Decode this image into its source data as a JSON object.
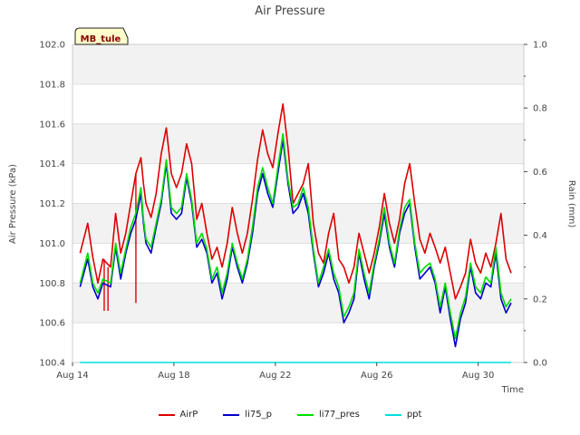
{
  "chart_data": {
    "type": "line",
    "title": "Air Pressure",
    "xlabel": "Time",
    "ylabel": "Air Pressure (kPa)",
    "y2label": "Rain (mm)",
    "annotation": "MB_tule",
    "x_ticks": [
      "Aug 14",
      "Aug 18",
      "Aug 22",
      "Aug 26",
      "Aug 30"
    ],
    "y_ticks": [
      "100.4",
      "100.6",
      "100.8",
      "101.0",
      "101.2",
      "101.4",
      "101.6",
      "101.8",
      "102.0"
    ],
    "y2_ticks": [
      "0.0",
      "0.2",
      "0.4",
      "0.6",
      "0.8",
      "1.0"
    ],
    "ylim": [
      100.4,
      102.0
    ],
    "y2lim": [
      0.0,
      1.0
    ],
    "xlim_days": [
      14,
      31.8
    ],
    "grid": true,
    "legend_position": "bottom",
    "series": [
      {
        "name": "AirP",
        "color": "#dd0000",
        "axis": "left",
        "x": [
          14.3,
          14.6,
          14.8,
          15.0,
          15.2,
          15.5,
          15.7,
          15.9,
          16.1,
          16.3,
          16.5,
          16.7,
          16.8,
          16.9,
          17.1,
          17.3,
          17.5,
          17.7,
          17.9,
          18.1,
          18.3,
          18.5,
          18.7,
          18.9,
          19.1,
          19.3,
          19.5,
          19.7,
          19.9,
          20.1,
          20.3,
          20.5,
          20.7,
          20.9,
          21.1,
          21.3,
          21.5,
          21.7,
          21.9,
          22.1,
          22.3,
          22.5,
          22.7,
          22.9,
          23.1,
          23.3,
          23.5,
          23.7,
          23.9,
          24.1,
          24.3,
          24.5,
          24.7,
          24.9,
          25.1,
          25.3,
          25.5,
          25.7,
          25.9,
          26.1,
          26.3,
          26.5,
          26.7,
          26.9,
          27.1,
          27.3,
          27.5,
          27.7,
          27.9,
          28.1,
          28.3,
          28.5,
          28.7,
          28.9,
          29.1,
          29.3,
          29.5,
          29.7,
          29.9,
          30.1,
          30.3,
          30.5,
          30.7,
          30.9,
          31.1,
          31.3
        ],
        "y": [
          100.95,
          101.1,
          100.93,
          100.8,
          100.92,
          100.88,
          101.15,
          100.95,
          101.05,
          101.2,
          101.35,
          101.43,
          101.3,
          101.2,
          101.13,
          101.25,
          101.45,
          101.58,
          101.35,
          101.28,
          101.35,
          101.5,
          101.4,
          101.12,
          101.2,
          101.05,
          100.92,
          100.98,
          100.88,
          101.0,
          101.18,
          101.05,
          100.95,
          101.05,
          101.22,
          101.42,
          101.57,
          101.45,
          101.38,
          101.55,
          101.7,
          101.48,
          101.2,
          101.25,
          101.3,
          101.4,
          101.1,
          100.95,
          100.9,
          101.05,
          101.15,
          100.92,
          100.88,
          100.8,
          100.88,
          101.05,
          100.95,
          100.85,
          100.95,
          101.08,
          101.25,
          101.1,
          101.0,
          101.12,
          101.3,
          101.4,
          101.2,
          101.02,
          100.95,
          101.05,
          100.98,
          100.9,
          100.98,
          100.85,
          100.72,
          100.78,
          100.85,
          101.02,
          100.9,
          100.85,
          100.95,
          100.88,
          101.0,
          101.15,
          100.92,
          100.85
        ],
        "spikes": [
          {
            "x": 15.25,
            "y": 100.66
          },
          {
            "x": 15.4,
            "y": 100.66
          },
          {
            "x": 16.5,
            "y": 100.7
          }
        ]
      },
      {
        "name": "li75_p",
        "color": "#0000cc",
        "axis": "left",
        "x": [
          14.3,
          14.6,
          14.8,
          15.0,
          15.2,
          15.5,
          15.7,
          15.9,
          16.1,
          16.3,
          16.5,
          16.7,
          16.8,
          16.9,
          17.1,
          17.3,
          17.5,
          17.7,
          17.9,
          18.1,
          18.3,
          18.5,
          18.7,
          18.9,
          19.1,
          19.3,
          19.5,
          19.7,
          19.9,
          20.1,
          20.3,
          20.5,
          20.7,
          20.9,
          21.1,
          21.3,
          21.5,
          21.7,
          21.9,
          22.1,
          22.3,
          22.5,
          22.7,
          22.9,
          23.1,
          23.3,
          23.5,
          23.7,
          23.9,
          24.1,
          24.3,
          24.5,
          24.7,
          24.9,
          25.1,
          25.3,
          25.5,
          25.7,
          25.9,
          26.1,
          26.3,
          26.5,
          26.7,
          26.9,
          27.1,
          27.3,
          27.5,
          27.7,
          27.9,
          28.1,
          28.3,
          28.5,
          28.7,
          28.9,
          29.1,
          29.3,
          29.5,
          29.7,
          29.9,
          30.1,
          30.3,
          30.5,
          30.7,
          30.9,
          31.1,
          31.3
        ],
        "y": [
          100.78,
          100.92,
          100.78,
          100.72,
          100.8,
          100.78,
          100.98,
          100.82,
          100.95,
          101.05,
          101.12,
          101.25,
          101.1,
          101.0,
          100.95,
          101.08,
          101.2,
          101.4,
          101.15,
          101.12,
          101.15,
          101.33,
          101.2,
          100.98,
          101.02,
          100.95,
          100.8,
          100.85,
          100.72,
          100.82,
          100.98,
          100.88,
          100.8,
          100.9,
          101.05,
          101.25,
          101.35,
          101.25,
          101.18,
          101.35,
          101.52,
          101.3,
          101.15,
          101.18,
          101.25,
          101.15,
          100.95,
          100.78,
          100.85,
          100.95,
          100.82,
          100.75,
          100.6,
          100.65,
          100.72,
          100.95,
          100.82,
          100.72,
          100.88,
          101.0,
          101.15,
          100.98,
          100.88,
          101.05,
          101.15,
          101.2,
          100.98,
          100.82,
          100.85,
          100.88,
          100.8,
          100.65,
          100.78,
          100.62,
          100.48,
          100.62,
          100.7,
          100.88,
          100.75,
          100.72,
          100.8,
          100.78,
          100.95,
          100.72,
          100.65,
          100.7
        ]
      },
      {
        "name": "li77_pres",
        "color": "#00dd00",
        "axis": "left",
        "x": [
          14.3,
          14.6,
          14.8,
          15.0,
          15.2,
          15.5,
          15.7,
          15.9,
          16.1,
          16.3,
          16.5,
          16.7,
          16.8,
          16.9,
          17.1,
          17.3,
          17.5,
          17.7,
          17.9,
          18.1,
          18.3,
          18.5,
          18.7,
          18.9,
          19.1,
          19.3,
          19.5,
          19.7,
          19.9,
          20.1,
          20.3,
          20.5,
          20.7,
          20.9,
          21.1,
          21.3,
          21.5,
          21.7,
          21.9,
          22.1,
          22.3,
          22.5,
          22.7,
          22.9,
          23.1,
          23.3,
          23.5,
          23.7,
          23.9,
          24.1,
          24.3,
          24.5,
          24.7,
          24.9,
          25.1,
          25.3,
          25.5,
          25.7,
          25.9,
          26.1,
          26.3,
          26.5,
          26.7,
          26.9,
          27.1,
          27.3,
          27.5,
          27.7,
          27.9,
          28.1,
          28.3,
          28.5,
          28.7,
          28.9,
          29.1,
          29.3,
          29.5,
          29.7,
          29.9,
          30.1,
          30.3,
          30.5,
          30.7,
          30.9,
          31.1,
          31.3
        ],
        "y": [
          100.8,
          100.95,
          100.8,
          100.75,
          100.82,
          100.8,
          101.0,
          100.85,
          100.97,
          101.08,
          101.15,
          101.28,
          101.12,
          101.02,
          100.98,
          101.1,
          101.22,
          101.42,
          101.18,
          101.15,
          101.18,
          101.35,
          101.22,
          101.0,
          101.05,
          100.97,
          100.82,
          100.88,
          100.75,
          100.85,
          101.0,
          100.9,
          100.82,
          100.92,
          101.08,
          101.28,
          101.38,
          101.28,
          101.2,
          101.38,
          101.55,
          101.32,
          101.18,
          101.2,
          101.28,
          101.18,
          100.97,
          100.8,
          100.88,
          100.97,
          100.85,
          100.78,
          100.63,
          100.68,
          100.75,
          100.97,
          100.85,
          100.75,
          100.9,
          101.02,
          101.18,
          101.0,
          100.9,
          101.07,
          101.18,
          101.22,
          101.0,
          100.85,
          100.88,
          100.9,
          100.82,
          100.68,
          100.8,
          100.65,
          100.52,
          100.65,
          100.73,
          100.9,
          100.78,
          100.75,
          100.83,
          100.8,
          100.98,
          100.75,
          100.68,
          100.72
        ]
      },
      {
        "name": "ppt",
        "color": "#00dddd",
        "axis": "right",
        "x": [
          14.3,
          31.3
        ],
        "y": [
          0.0,
          0.0
        ]
      }
    ]
  },
  "legend": {
    "items": [
      {
        "label": "AirP",
        "color": "#dd0000"
      },
      {
        "label": "li75_p",
        "color": "#0000cc"
      },
      {
        "label": "li77_pres",
        "color": "#00dd00"
      },
      {
        "label": "ppt",
        "color": "#00dddd"
      }
    ]
  }
}
